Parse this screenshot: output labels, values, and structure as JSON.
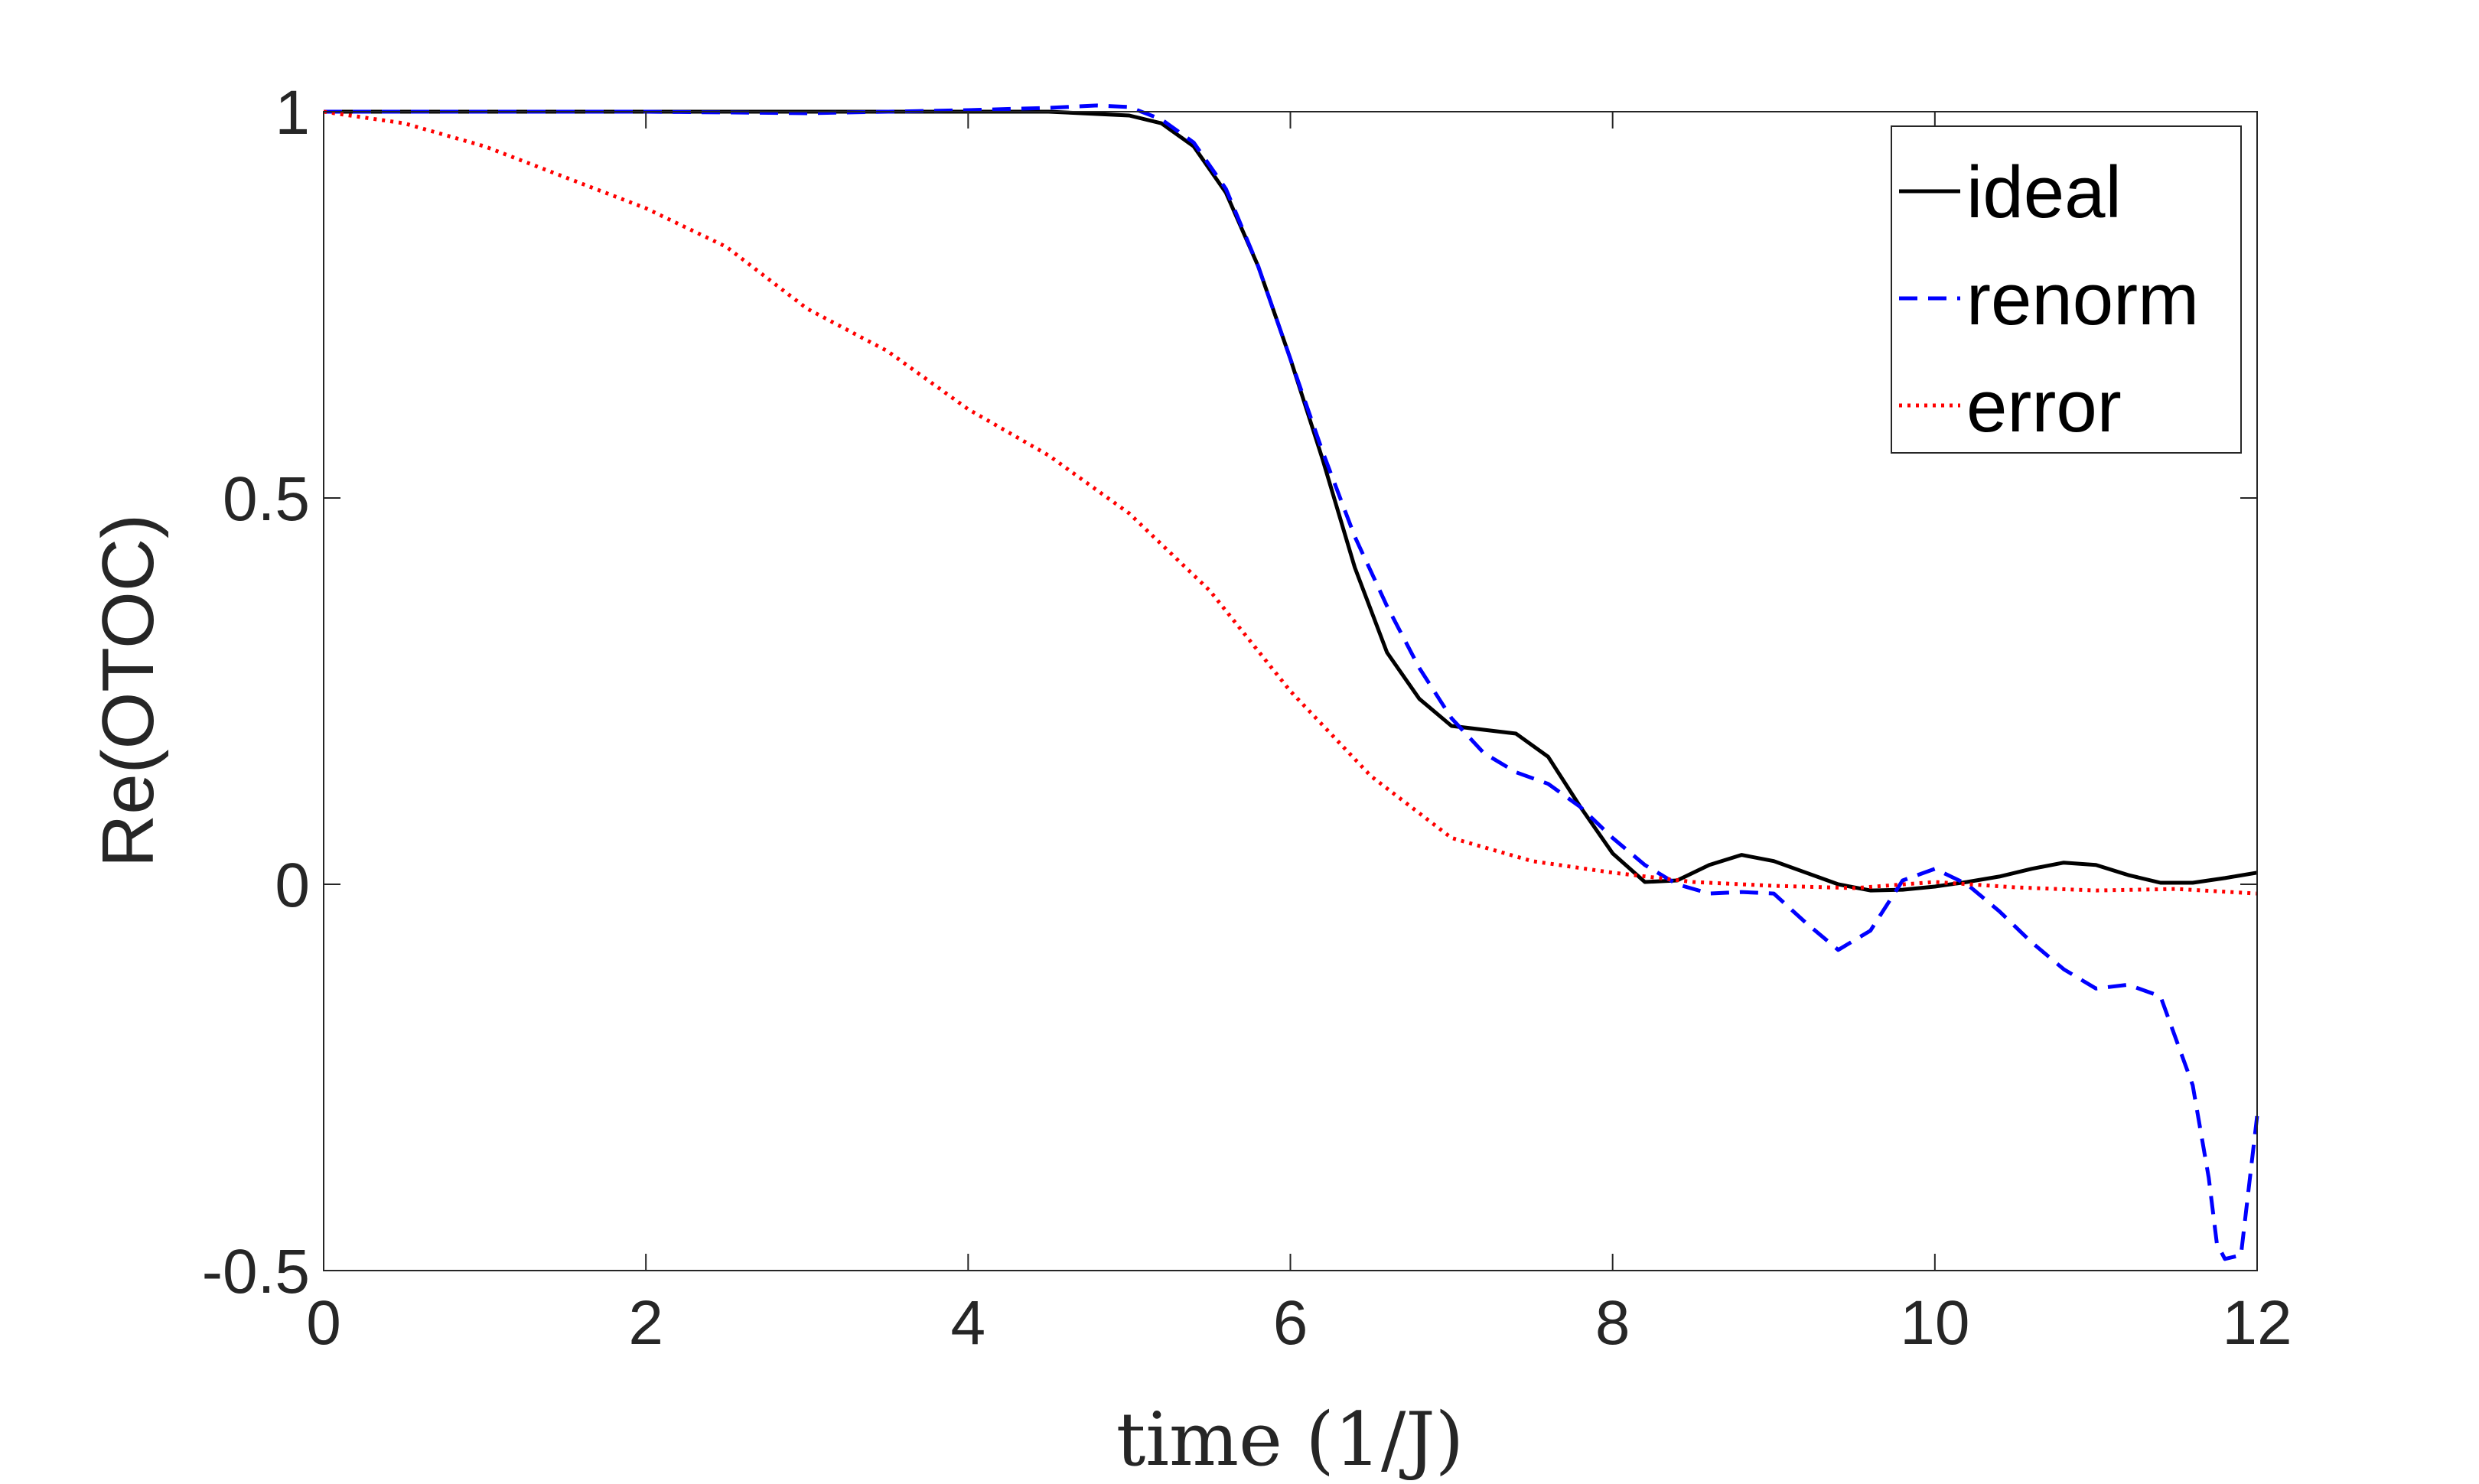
{
  "chart_data": {
    "type": "line",
    "title": "",
    "xlabel": "time (1/J)",
    "ylabel": "Re(OTOC)",
    "xlim": [
      0,
      12
    ],
    "ylim": [
      -0.5,
      1
    ],
    "xticks": [
      0,
      2,
      4,
      6,
      8,
      10,
      12
    ],
    "yticks": [
      -0.5,
      0,
      0.5,
      1
    ],
    "xtick_labels": [
      "0",
      "2",
      "4",
      "6",
      "8",
      "10",
      "12"
    ],
    "ytick_labels": [
      "-0.5",
      "0",
      "0.5",
      "1"
    ],
    "grid": false,
    "legend_position": "top-right",
    "series": [
      {
        "name": "ideal",
        "color": "#000000",
        "style": "solid",
        "x": [
          0,
          1,
          2,
          3,
          4,
          4.5,
          5,
          5.2,
          5.4,
          5.6,
          5.8,
          6.0,
          6.2,
          6.4,
          6.6,
          6.8,
          7.0,
          7.2,
          7.4,
          7.6,
          7.8,
          8.0,
          8.2,
          8.4,
          8.6,
          8.8,
          9.0,
          9.2,
          9.4,
          9.6,
          9.8,
          10.0,
          10.2,
          10.4,
          10.6,
          10.8,
          11.0,
          11.2,
          11.4,
          11.6,
          11.8,
          12.0
        ],
        "y": [
          1.0,
          1.0,
          1.0,
          1.0,
          1.0,
          1.0,
          0.995,
          0.985,
          0.955,
          0.895,
          0.8,
          0.68,
          0.55,
          0.41,
          0.3,
          0.24,
          0.205,
          0.2,
          0.195,
          0.165,
          0.1,
          0.04,
          0.003,
          0.005,
          0.025,
          0.038,
          0.03,
          0.015,
          0.0,
          -0.008,
          -0.007,
          -0.003,
          0.003,
          0.01,
          0.02,
          0.028,
          0.025,
          0.012,
          0.002,
          0.002,
          0.008,
          0.015
        ]
      },
      {
        "name": "renorm",
        "color": "#0000ff",
        "style": "dashed",
        "x": [
          0,
          1,
          2,
          3,
          4,
          4.5,
          4.8,
          5.0,
          5.2,
          5.4,
          5.6,
          5.8,
          6.0,
          6.2,
          6.4,
          6.6,
          6.8,
          7.0,
          7.2,
          7.4,
          7.6,
          7.8,
          8.0,
          8.2,
          8.4,
          8.6,
          8.8,
          9.0,
          9.2,
          9.4,
          9.6,
          9.8,
          10.0,
          10.2,
          10.4,
          10.6,
          10.8,
          11.0,
          11.2,
          11.4,
          11.6,
          11.7,
          11.75,
          11.8,
          11.9,
          12.0
        ],
        "y": [
          1.0,
          1.0,
          1.0,
          0.998,
          1.002,
          1.005,
          1.008,
          1.006,
          0.99,
          0.96,
          0.9,
          0.8,
          0.68,
          0.56,
          0.45,
          0.36,
          0.28,
          0.215,
          0.17,
          0.145,
          0.13,
          0.1,
          0.06,
          0.025,
          0.0,
          -0.012,
          -0.01,
          -0.012,
          -0.05,
          -0.085,
          -0.06,
          0.005,
          0.02,
          0.0,
          -0.035,
          -0.075,
          -0.11,
          -0.135,
          -0.13,
          -0.145,
          -0.26,
          -0.38,
          -0.465,
          -0.485,
          -0.48,
          -0.3
        ]
      },
      {
        "name": "error",
        "color": "#ff0000",
        "style": "dotted",
        "x": [
          0,
          0.5,
          1.0,
          1.5,
          2.0,
          2.5,
          3.0,
          3.5,
          4.0,
          4.5,
          5.0,
          5.5,
          6.0,
          6.5,
          7.0,
          7.5,
          8.0,
          8.5,
          9.0,
          9.5,
          10.0,
          10.5,
          11.0,
          11.5,
          12.0
        ],
        "y": [
          1.0,
          0.985,
          0.955,
          0.915,
          0.875,
          0.825,
          0.745,
          0.69,
          0.615,
          0.555,
          0.48,
          0.38,
          0.25,
          0.14,
          0.06,
          0.03,
          0.015,
          0.003,
          -0.002,
          -0.005,
          0.003,
          -0.004,
          -0.008,
          -0.006,
          -0.012
        ]
      }
    ]
  }
}
